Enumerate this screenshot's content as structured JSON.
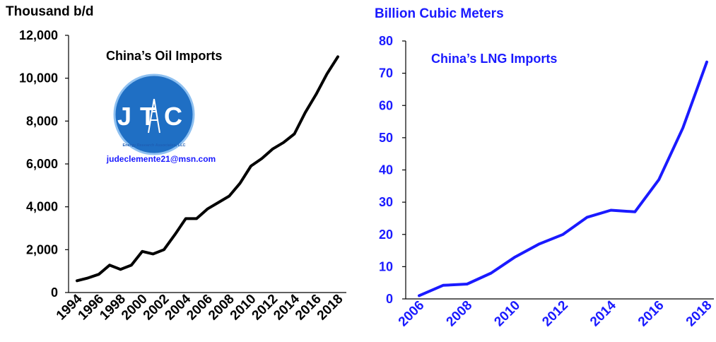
{
  "chart_data": [
    {
      "type": "line",
      "title": "China’s Oil Imports",
      "ylabel": "Thousand b/d",
      "xlabel": "",
      "ylim": [
        0,
        12000
      ],
      "yticks": [
        "0",
        "2,000",
        "4,000",
        "6,000",
        "8,000",
        "10,000",
        "12,000"
      ],
      "xticks": [
        "1994",
        "1996",
        "1998",
        "2000",
        "2002",
        "2004",
        "2006",
        "2008",
        "2010",
        "2012",
        "2014",
        "2016",
        "2018"
      ],
      "line_color": "#000000",
      "x": [
        1994,
        1995,
        1996,
        1997,
        1998,
        1999,
        2000,
        2001,
        2002,
        2003,
        2004,
        2005,
        2006,
        2007,
        2008,
        2009,
        2010,
        2011,
        2012,
        2013,
        2014,
        2015,
        2016,
        2017,
        2018
      ],
      "y": [
        550,
        680,
        850,
        1280,
        1080,
        1280,
        1920,
        1800,
        2000,
        2700,
        3450,
        3450,
        3900,
        4200,
        4500,
        5100,
        5900,
        6250,
        6700,
        7000,
        7400,
        8400,
        9250,
        10200,
        11000
      ]
    },
    {
      "type": "line",
      "title": "China’s LNG Imports",
      "ylabel": "Billion Cubic Meters",
      "xlabel": "",
      "ylim": [
        0,
        80
      ],
      "yticks": [
        "0",
        "10",
        "20",
        "30",
        "40",
        "50",
        "60",
        "70",
        "80"
      ],
      "xticks": [
        "2006",
        "2008",
        "2010",
        "2012",
        "2014",
        "2016",
        "2018"
      ],
      "line_color": "#1a1aff",
      "x": [
        2006,
        2007,
        2008,
        2009,
        2010,
        2011,
        2012,
        2013,
        2014,
        2015,
        2016,
        2017,
        2018
      ],
      "y": [
        1,
        4.2,
        4.6,
        8,
        13,
        17,
        20,
        25.3,
        27.5,
        27,
        37,
        53,
        73.5
      ]
    }
  ],
  "logo": {
    "text": "JTC",
    "subtitle": "Energy Research Associates, LLC",
    "email": "judeclemente21@msn.com"
  }
}
